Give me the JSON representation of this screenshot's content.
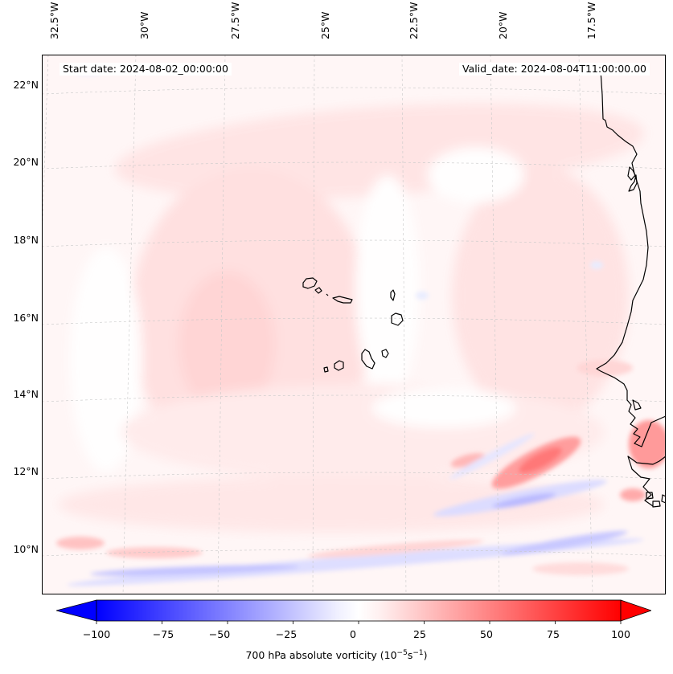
{
  "header": {
    "start_date": "Start date: 2024-08-02_00:00:00",
    "valid_date": "Valid_date: 2024-08-04T11:00:00.00"
  },
  "map": {
    "longitude_labels": [
      "32.5°W",
      "30°W",
      "27.5°W",
      "25°W",
      "22.5°W",
      "20°W",
      "17.5°W"
    ],
    "latitude_labels": [
      "22°N",
      "20°N",
      "18°N",
      "16°N",
      "14°N",
      "12°N",
      "10°N"
    ],
    "field_colors": {
      "positive": "#ff0000",
      "zero": "#ffffff",
      "negative": "#0000ff",
      "coast": "#000000"
    }
  },
  "colorbar": {
    "label_prefix": "700 hPa absolute vorticity (10",
    "label_exp1": "−5",
    "label_mid": "s",
    "label_exp2": "−1",
    "label_suffix": ")",
    "ticks": [
      "−100",
      "−75",
      "−50",
      "−25",
      "0",
      "25",
      "50",
      "75",
      "100"
    ],
    "min": -100,
    "max": 100
  }
}
